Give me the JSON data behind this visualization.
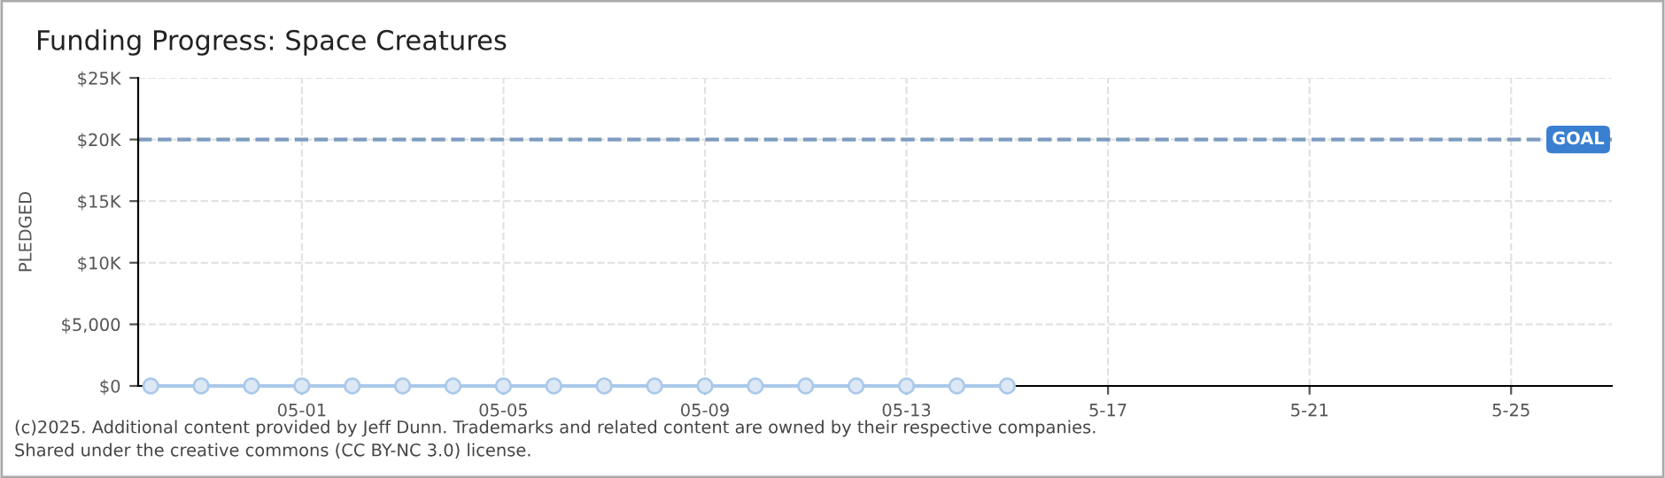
{
  "chart_data": {
    "type": "line",
    "title": "Funding Progress: Space Creatures",
    "ylabel": "PLEDGED",
    "x": [
      "2025-04-28",
      "2025-04-29",
      "2025-04-30",
      "2025-05-01",
      "2025-05-02",
      "2025-05-03",
      "2025-05-04",
      "2025-05-05",
      "2025-05-06",
      "2025-05-07",
      "2025-05-08",
      "2025-05-09",
      "2025-05-10",
      "2025-05-11",
      "2025-05-12",
      "2025-05-13",
      "2025-05-14",
      "2025-05-15"
    ],
    "series": [
      {
        "color": "#a9c9ea",
        "values": [
          0,
          0,
          0,
          0,
          0,
          0,
          0,
          0,
          0,
          0,
          0,
          0,
          0,
          0,
          0,
          0,
          0,
          0
        ]
      }
    ],
    "marker": "circle",
    "line_style": "solid",
    "xlim": [
      "2025-04-27T18:00",
      "2025-05-27"
    ],
    "xticks": [
      {
        "value": "2025-05-01",
        "label": "05-01"
      },
      {
        "value": "2025-05-05",
        "label": "05-05"
      },
      {
        "value": "2025-05-09",
        "label": "05-09"
      },
      {
        "value": "2025-05-13",
        "label": "05-13"
      },
      {
        "value": "2025-05-17",
        "label": "5-17"
      },
      {
        "value": "2025-05-21",
        "label": "5-21"
      },
      {
        "value": "2025-05-25",
        "label": "5-25"
      }
    ],
    "ylim": [
      0,
      25000
    ],
    "yticks": [
      {
        "value": 0,
        "label": "$0"
      },
      {
        "value": 5000,
        "label": "$5,000"
      },
      {
        "value": 10000,
        "label": "$10K"
      },
      {
        "value": 15000,
        "label": "$15K"
      },
      {
        "value": 20000,
        "label": "$20K"
      },
      {
        "value": 25000,
        "label": "$25K"
      }
    ],
    "ref_lines": [
      {
        "axis": "y",
        "value": 20000,
        "label": "GOAL",
        "color": "#7f9cc0",
        "line_style": "dashed"
      }
    ],
    "grid": true,
    "annotations": [
      "(c)2025. Additional content provided by Jeff Dunn. Trademarks and related content are owned by their respective companies.",
      "Shared under the creative commons (CC BY-NC 3.0) license."
    ]
  }
}
